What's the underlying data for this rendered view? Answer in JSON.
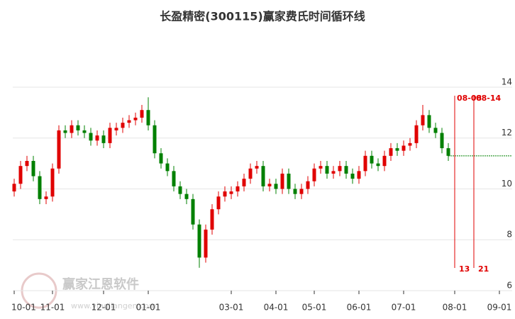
{
  "chart_data": {
    "type": "candlestick",
    "title": "长盈精密(300115)赢家费氏时间循环线",
    "watermark": "赢家江恩软件",
    "watermark_url": "www.yingjiangen.com",
    "categories": [
      "10-01",
      null,
      null,
      null,
      null,
      null,
      "11-01",
      null,
      null,
      null,
      null,
      null,
      null,
      null,
      "12-01",
      null,
      null,
      null,
      null,
      null,
      null,
      "01-01",
      null,
      null,
      null,
      null,
      null,
      null,
      null,
      null,
      null,
      null,
      null,
      null,
      "03-01",
      null,
      null,
      null,
      null,
      null,
      null,
      "04-01",
      null,
      null,
      null,
      null,
      null,
      "05-01",
      null,
      null,
      null,
      null,
      null,
      null,
      "06-01",
      null,
      null,
      null,
      null,
      null,
      null,
      "07-01",
      null,
      null,
      null,
      null,
      null,
      null,
      null,
      "08-01",
      null,
      null,
      null,
      null,
      null,
      null,
      "09-01",
      null
    ],
    "open": [
      9.9,
      10.2,
      10.9,
      11.1,
      10.5,
      9.6,
      9.7,
      10.8,
      12.3,
      12.2,
      12.5,
      12.3,
      12.2,
      11.9,
      12.1,
      11.8,
      12.3,
      12.4,
      12.6,
      12.7,
      12.8,
      13.1,
      12.5,
      11.4,
      11.0,
      10.7,
      10.1,
      9.8,
      9.6,
      8.6,
      7.3,
      8.4,
      9.2,
      9.7,
      9.8,
      9.9,
      10.1,
      10.4,
      10.8,
      10.9,
      10.1,
      10.2,
      10.0,
      10.6,
      10.0,
      9.8,
      10.0,
      10.3,
      10.8,
      10.9,
      10.6,
      10.7,
      10.9,
      10.6,
      10.4,
      10.7,
      11.3,
      11.0,
      10.9,
      11.3,
      11.6,
      11.5,
      11.7,
      11.8,
      12.5,
      12.9,
      12.4,
      12.2,
      11.6,
      null,
      null,
      null,
      null,
      null,
      null,
      null,
      null,
      null
    ],
    "high": [
      10.4,
      11.1,
      11.3,
      11.3,
      10.7,
      9.9,
      11.0,
      12.5,
      12.5,
      12.7,
      12.7,
      12.5,
      12.4,
      12.3,
      12.3,
      12.6,
      12.6,
      12.8,
      12.9,
      13.0,
      13.3,
      13.6,
      12.7,
      11.6,
      11.2,
      10.9,
      10.3,
      10.0,
      9.8,
      8.8,
      8.6,
      9.4,
      9.9,
      10.1,
      10.1,
      10.3,
      10.6,
      11.0,
      11.1,
      11.1,
      10.4,
      10.4,
      10.8,
      10.8,
      10.2,
      10.2,
      10.5,
      11.0,
      11.1,
      11.1,
      10.9,
      11.1,
      11.1,
      10.8,
      10.9,
      11.5,
      11.5,
      11.2,
      11.5,
      11.8,
      11.8,
      11.9,
      12.0,
      12.7,
      13.3,
      13.1,
      12.6,
      12.4,
      11.8,
      null,
      null,
      null,
      null,
      null,
      null,
      null,
      null,
      null
    ],
    "low": [
      9.7,
      10.0,
      10.7,
      10.3,
      9.4,
      9.4,
      9.5,
      10.6,
      12.0,
      12.0,
      12.1,
      12.0,
      11.7,
      11.7,
      11.6,
      11.6,
      12.1,
      12.2,
      12.4,
      12.5,
      12.6,
      12.3,
      11.2,
      10.8,
      10.5,
      9.9,
      9.6,
      9.4,
      8.4,
      6.9,
      7.1,
      8.2,
      9.0,
      9.5,
      9.6,
      9.7,
      9.9,
      10.2,
      10.6,
      9.9,
      9.9,
      9.8,
      9.8,
      9.8,
      9.6,
      9.6,
      9.8,
      10.1,
      10.6,
      10.4,
      10.4,
      10.5,
      10.4,
      10.2,
      10.2,
      10.5,
      10.8,
      10.7,
      10.7,
      11.1,
      11.3,
      11.3,
      11.5,
      11.6,
      12.3,
      12.2,
      12.0,
      11.4,
      11.1,
      null,
      null,
      null,
      null,
      null,
      null,
      null,
      null,
      null
    ],
    "close": [
      10.2,
      10.9,
      11.1,
      10.5,
      9.6,
      9.7,
      10.8,
      12.3,
      12.2,
      12.5,
      12.3,
      12.2,
      11.9,
      12.1,
      11.8,
      12.4,
      12.4,
      12.6,
      12.7,
      12.8,
      13.1,
      12.5,
      11.4,
      11.0,
      10.7,
      10.1,
      9.8,
      9.6,
      8.6,
      7.3,
      8.4,
      9.2,
      9.7,
      9.9,
      9.9,
      10.1,
      10.4,
      10.8,
      10.9,
      10.1,
      10.2,
      10.0,
      10.6,
      10.0,
      9.8,
      10.0,
      10.3,
      10.8,
      10.9,
      10.6,
      10.7,
      10.9,
      10.6,
      10.4,
      10.7,
      11.3,
      11.0,
      10.9,
      11.3,
      11.6,
      11.5,
      11.7,
      11.8,
      12.5,
      12.9,
      12.4,
      12.2,
      11.6,
      11.3,
      null,
      null,
      null,
      null,
      null,
      null,
      null,
      null,
      null
    ],
    "up_color": "#e00000",
    "down_color": "#008000",
    "reference_line": 11.3,
    "cycle_markers": [
      {
        "date": "08-08",
        "count": 13
      },
      {
        "date": "08-14",
        "count": 21
      }
    ],
    "ylim": [
      6,
      14.5
    ],
    "yticks": [
      6,
      8,
      10,
      12,
      14
    ],
    "grid": true
  }
}
